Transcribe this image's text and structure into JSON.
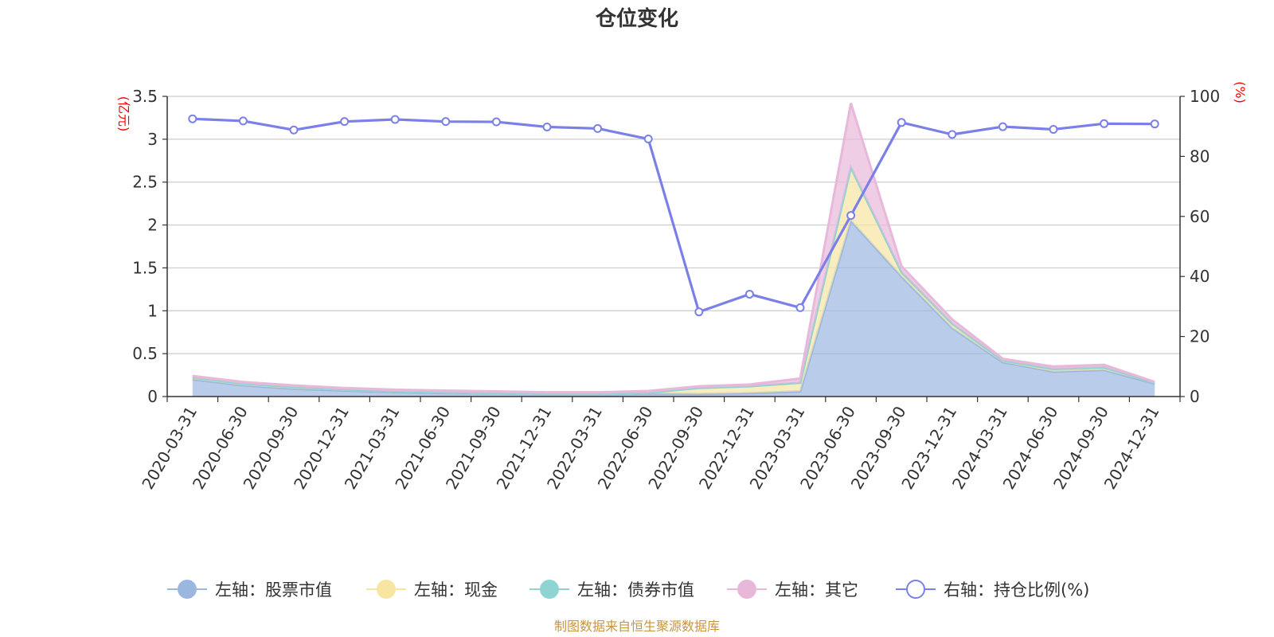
{
  "chart_data": {
    "type": "area",
    "title": "仓位变化",
    "left_unit": "(亿元)",
    "right_unit": "(%)",
    "categories": [
      "2020-03-31",
      "2020-06-30",
      "2020-09-30",
      "2020-12-31",
      "2021-03-31",
      "2021-06-30",
      "2021-09-30",
      "2021-12-31",
      "2022-03-31",
      "2022-06-30",
      "2022-09-30",
      "2022-12-31",
      "2023-03-31",
      "2023-06-30",
      "2023-09-30",
      "2023-12-31",
      "2024-03-31",
      "2024-06-30",
      "2024-09-30",
      "2024-12-31"
    ],
    "y_left": {
      "min": 0,
      "max": 3.5,
      "ticks": [
        "0",
        "0.5",
        "1",
        "1.5",
        "2",
        "2.5",
        "3",
        "3.5"
      ]
    },
    "y_right": {
      "min": 0,
      "max": 100,
      "ticks": [
        "0",
        "20",
        "40",
        "60",
        "80",
        "100"
      ]
    },
    "stacked_series": [
      {
        "name": "左轴：股票市值",
        "axis": "left",
        "color": "#9bb7e0",
        "values": [
          0.2,
          0.13,
          0.09,
          0.07,
          0.05,
          0.04,
          0.035,
          0.025,
          0.025,
          0.035,
          0.03,
          0.04,
          0.06,
          2.05,
          1.4,
          0.8,
          0.4,
          0.29,
          0.31,
          0.15
        ]
      },
      {
        "name": "左轴：现金",
        "axis": "left",
        "color": "#f7e6a2",
        "values": [
          0.02,
          0.02,
          0.02,
          0.01,
          0.01,
          0.01,
          0.005,
          0.005,
          0.005,
          0.01,
          0.07,
          0.08,
          0.1,
          0.62,
          0.05,
          0.05,
          0.02,
          0.03,
          0.03,
          0.01
        ]
      },
      {
        "name": "左轴：债券市值",
        "axis": "left",
        "color": "#8fd3d3",
        "values": [
          0,
          0,
          0,
          0,
          0,
          0,
          0,
          0,
          0,
          0,
          0,
          0,
          0,
          0,
          0,
          0,
          0,
          0,
          0,
          0
        ]
      },
      {
        "name": "左轴：其它",
        "axis": "left",
        "color": "#e8b8da",
        "values": [
          0.02,
          0.02,
          0.02,
          0.02,
          0.02,
          0.02,
          0.02,
          0.02,
          0.02,
          0.02,
          0.02,
          0.02,
          0.05,
          0.75,
          0.07,
          0.05,
          0.02,
          0.03,
          0.03,
          0.01
        ]
      }
    ],
    "line_series": {
      "name": "右轴：持仓比例(%)",
      "axis": "right",
      "color": "#7b80e8",
      "values": [
        92.5,
        91.8,
        88.8,
        91.6,
        92.3,
        91.6,
        91.5,
        89.8,
        89.3,
        85.8,
        28.2,
        34.1,
        29.6,
        60.3,
        91.3,
        87.3,
        89.9,
        89.0,
        90.9,
        90.8
      ]
    },
    "legend_position": "bottom",
    "grid": true
  },
  "source": "制图数据来自恒生聚源数据库"
}
